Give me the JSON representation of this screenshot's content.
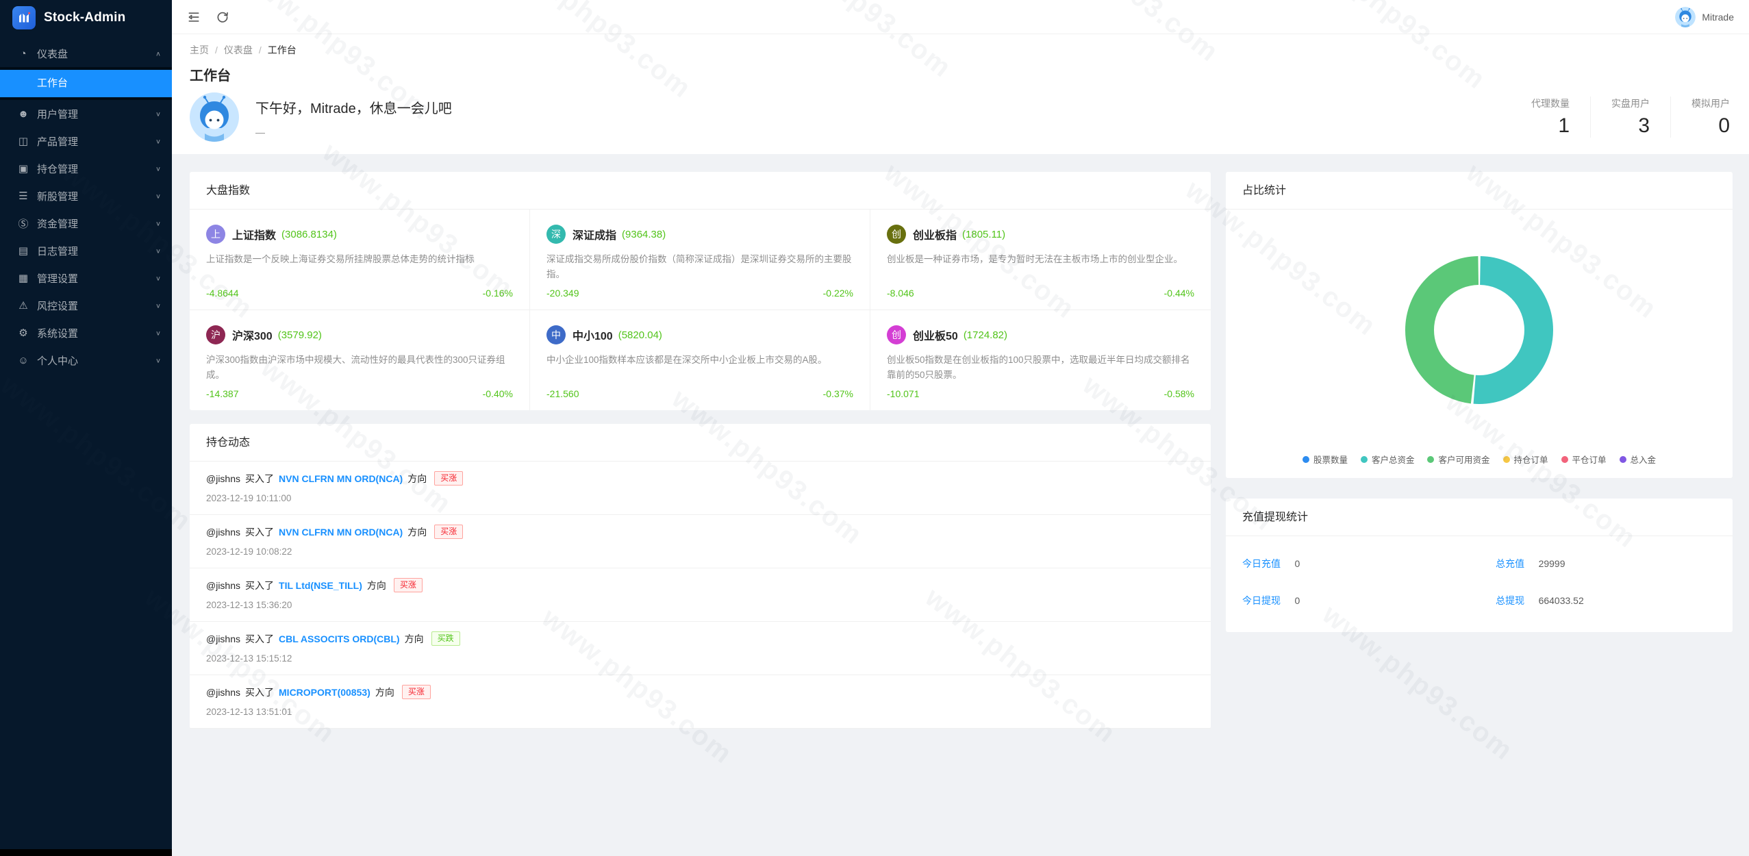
{
  "watermark": {
    "text": "www.php93.com"
  },
  "app": {
    "name": "Stock-Admin"
  },
  "topbar": {
    "username": "Mitrade"
  },
  "sidebar": {
    "dashboard": {
      "label": "仪表盘",
      "icon": "dashboard-icon",
      "glyph": "◔",
      "chevron": "∧"
    },
    "workbench": {
      "label": "工作台"
    },
    "items": [
      {
        "label": "用户管理",
        "icon": "users-icon",
        "glyph": "☻",
        "chevron": "∨"
      },
      {
        "label": "产品管理",
        "icon": "products-icon",
        "glyph": "◫",
        "chevron": "∨"
      },
      {
        "label": "持仓管理",
        "icon": "positions-icon",
        "glyph": "▣",
        "chevron": "∨"
      },
      {
        "label": "新股管理",
        "icon": "ipo-icon",
        "glyph": "☰",
        "chevron": "∨"
      },
      {
        "label": "资金管理",
        "icon": "funds-icon",
        "glyph": "Ⓢ",
        "chevron": "∨"
      },
      {
        "label": "日志管理",
        "icon": "logs-icon",
        "glyph": "▤",
        "chevron": "∨"
      },
      {
        "label": "管理设置",
        "icon": "admin-settings-icon",
        "glyph": "▦",
        "chevron": "∨"
      },
      {
        "label": "风控设置",
        "icon": "risk-icon",
        "glyph": "⚠",
        "chevron": "∨"
      },
      {
        "label": "系统设置",
        "icon": "system-settings-icon",
        "glyph": "⚙",
        "chevron": "∨"
      },
      {
        "label": "个人中心",
        "icon": "profile-icon",
        "glyph": "☺",
        "chevron": "∨"
      }
    ]
  },
  "breadcrumb": {
    "items": [
      "主页",
      "仪表盘",
      "工作台"
    ]
  },
  "page": {
    "title": "工作台"
  },
  "greeting": {
    "message": "下午好，Mitrade，休息一会儿吧",
    "sub": "—"
  },
  "stats": [
    {
      "label": "代理数量",
      "value": "1"
    },
    {
      "label": "实盘用户",
      "value": "3"
    },
    {
      "label": "模拟用户",
      "value": "0"
    }
  ],
  "indices": {
    "title": "大盘指数",
    "cards": [
      {
        "badge": "上",
        "badge_color": "#8d85e4",
        "name": "上证指数",
        "value": "(3086.8134)",
        "desc": "上证指数是一个反映上海证券交易所挂牌股票总体走势的统计指标",
        "change": "-4.8644",
        "pct": "-0.16%"
      },
      {
        "badge": "深",
        "badge_color": "#33b9ae",
        "name": "深证成指",
        "value": "(9364.38)",
        "desc": "深证成指交易所成份股价指数（简称深证成指）是深圳证券交易所的主要股指。",
        "change": "-20.349",
        "pct": "-0.22%"
      },
      {
        "badge": "创",
        "badge_color": "#68700f",
        "name": "创业板指",
        "value": "(1805.11)",
        "desc": "创业板是一种证券市场，是专为暂时无法在主板市场上市的创业型企业。",
        "change": "-8.046",
        "pct": "-0.44%"
      },
      {
        "badge": "沪",
        "badge_color": "#8e2753",
        "name": "沪深300",
        "value": "(3579.92)",
        "desc": "沪深300指数由沪深市场中规模大、流动性好的最具代表性的300只证券组成。",
        "change": "-14.387",
        "pct": "-0.40%"
      },
      {
        "badge": "中",
        "badge_color": "#3e6bc8",
        "name": "中小100",
        "value": "(5820.04)",
        "desc": "中小企业100指数样本应该都是在深交所中小企业板上市交易的A股。",
        "change": "-21.560",
        "pct": "-0.37%"
      },
      {
        "badge": "创",
        "badge_color": "#d43ed4",
        "name": "创业板50",
        "value": "(1724.82)",
        "desc": "创业板50指数是在创业板指的100只股票中，选取最近半年日均成交额排名靠前的50只股票。",
        "change": "-10.071",
        "pct": "-0.58%"
      }
    ]
  },
  "positions": {
    "title": "持仓动态",
    "items": [
      {
        "user": "@jishns",
        "action": "买入了",
        "stock": "NVN CLFRN MN ORD(NCA)",
        "direction_label": "方向",
        "badge": "买涨",
        "badge_type": "rise",
        "time": "2023-12-19 10:11:00"
      },
      {
        "user": "@jishns",
        "action": "买入了",
        "stock": "NVN CLFRN MN ORD(NCA)",
        "direction_label": "方向",
        "badge": "买涨",
        "badge_type": "rise",
        "time": "2023-12-19 10:08:22"
      },
      {
        "user": "@jishns",
        "action": "买入了",
        "stock": "TIL Ltd(NSE_TILL)",
        "direction_label": "方向",
        "badge": "买涨",
        "badge_type": "rise",
        "time": "2023-12-13 15:36:20"
      },
      {
        "user": "@jishns",
        "action": "买入了",
        "stock": "CBL ASSOCITS ORD(CBL)",
        "direction_label": "方向",
        "badge": "买跌",
        "badge_type": "fall",
        "time": "2023-12-13 15:15:12"
      },
      {
        "user": "@jishns",
        "action": "买入了",
        "stock": "MICROPORT(00853)",
        "direction_label": "方向",
        "badge": "买涨",
        "badge_type": "rise",
        "time": "2023-12-13 13:51:01"
      }
    ]
  },
  "chart_data": {
    "type": "pie",
    "title": "占比统计",
    "legend_position": "bottom",
    "note": "donut chart; slice shares estimated from arc angles, only two non-zero slices visible",
    "series": [
      {
        "name": "股票数量",
        "value": 0,
        "color": "#2d8cf0"
      },
      {
        "name": "客户总资金",
        "value": 51.5,
        "color": "#40c6c0"
      },
      {
        "name": "客户可用资金",
        "value": 48.5,
        "color": "#5bc878"
      },
      {
        "name": "持仓订单",
        "value": 0,
        "color": "#f6c744"
      },
      {
        "name": "平仓订单",
        "value": 0,
        "color": "#f2637b"
      },
      {
        "name": "总入金",
        "value": 0,
        "color": "#8057e3"
      }
    ]
  },
  "recharge": {
    "title": "充值提现统计",
    "cells": [
      {
        "label": "今日充值",
        "value": "0"
      },
      {
        "label": "总充值",
        "value": "29999"
      },
      {
        "label": "今日提现",
        "value": "0"
      },
      {
        "label": "总提现",
        "value": "664033.52"
      }
    ]
  }
}
